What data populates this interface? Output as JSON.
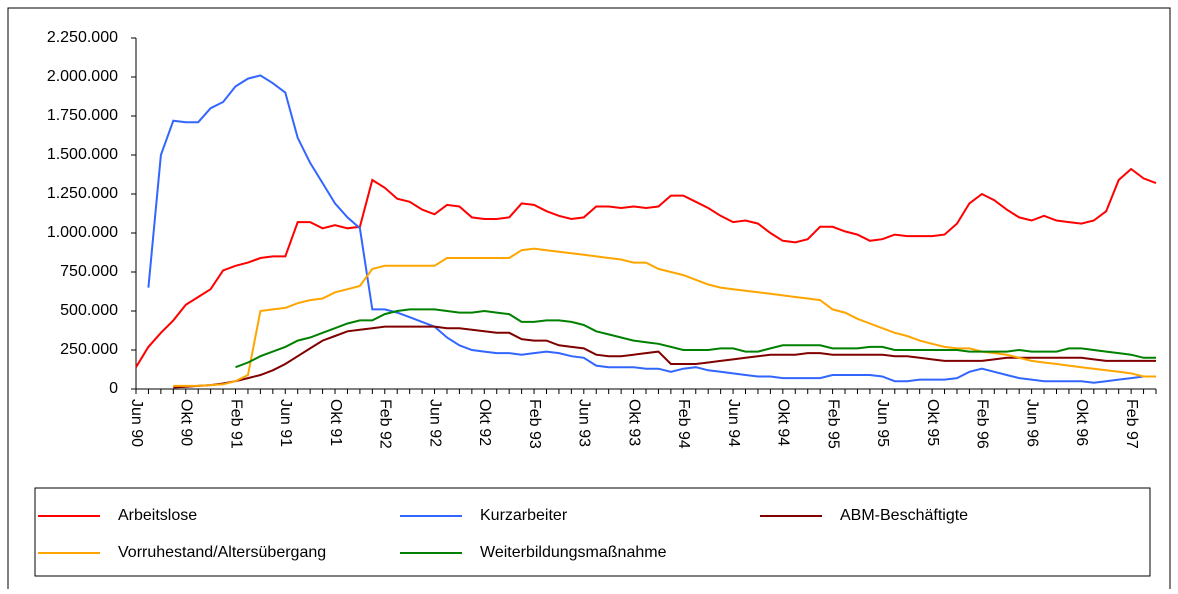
{
  "chart_data": {
    "type": "line",
    "categories": [
      "Jun 90",
      null,
      null,
      null,
      "Okt 90",
      null,
      null,
      null,
      "Feb 91",
      null,
      null,
      null,
      "Jun 91",
      null,
      null,
      null,
      "Okt 91",
      null,
      null,
      null,
      "Feb 92",
      null,
      null,
      null,
      "Jun 92",
      null,
      null,
      null,
      "Okt 92",
      null,
      null,
      null,
      "Feb 93",
      null,
      null,
      null,
      "Jun 93",
      null,
      null,
      null,
      "Okt 93",
      null,
      null,
      null,
      "Feb 94",
      null,
      null,
      null,
      "Jun 94",
      null,
      null,
      null,
      "Okt 94",
      null,
      null,
      null,
      "Feb 95",
      null,
      null,
      null,
      "Jun 95",
      null,
      null,
      null,
      "Okt 95",
      null,
      null,
      null,
      "Feb 96",
      null,
      null,
      null,
      "Jun 96",
      null,
      null,
      null,
      "Okt 96",
      null,
      null,
      null,
      "Feb 97",
      null,
      null
    ],
    "series": [
      {
        "name": "Arbeitslose",
        "color": "#ff0000",
        "values": [
          140000,
          270000,
          360000,
          440000,
          540000,
          590000,
          640000,
          760000,
          790000,
          810000,
          840000,
          850000,
          850000,
          1070000,
          1070000,
          1030000,
          1050000,
          1030000,
          1040000,
          1340000,
          1290000,
          1220000,
          1200000,
          1150000,
          1120000,
          1180000,
          1170000,
          1100000,
          1090000,
          1090000,
          1100000,
          1190000,
          1180000,
          1140000,
          1110000,
          1090000,
          1100000,
          1170000,
          1170000,
          1160000,
          1170000,
          1160000,
          1170000,
          1240000,
          1240000,
          1200000,
          1160000,
          1110000,
          1070000,
          1080000,
          1060000,
          1000000,
          950000,
          940000,
          960000,
          1040000,
          1040000,
          1010000,
          990000,
          950000,
          960000,
          990000,
          980000,
          980000,
          980000,
          990000,
          1060000,
          1190000,
          1250000,
          1210000,
          1150000,
          1100000,
          1080000,
          1110000,
          1080000,
          1070000,
          1060000,
          1080000,
          1140000,
          1340000,
          1410000,
          1350000,
          1320000
        ]
      },
      {
        "name": "Kurzarbeiter",
        "color": "#3366ff",
        "values": [
          null,
          650000,
          1500000,
          1720000,
          1710000,
          1710000,
          1800000,
          1840000,
          1940000,
          1990000,
          2010000,
          1960000,
          1900000,
          1610000,
          1450000,
          1320000,
          1190000,
          1100000,
          1030000,
          510000,
          510000,
          490000,
          460000,
          430000,
          400000,
          330000,
          280000,
          250000,
          240000,
          230000,
          230000,
          220000,
          230000,
          240000,
          230000,
          210000,
          200000,
          150000,
          140000,
          140000,
          140000,
          130000,
          130000,
          110000,
          130000,
          140000,
          120000,
          110000,
          100000,
          90000,
          80000,
          80000,
          70000,
          70000,
          70000,
          70000,
          90000,
          90000,
          90000,
          90000,
          80000,
          50000,
          50000,
          60000,
          60000,
          60000,
          70000,
          110000,
          130000,
          110000,
          90000,
          70000,
          60000,
          50000,
          50000,
          50000,
          50000,
          40000,
          50000,
          60000,
          70000,
          80000,
          80000
        ]
      },
      {
        "name": "ABM-Beschäftigte",
        "color": "#800000",
        "values": [
          null,
          null,
          null,
          10000,
          15000,
          20000,
          25000,
          35000,
          50000,
          70000,
          90000,
          120000,
          160000,
          210000,
          260000,
          310000,
          340000,
          370000,
          380000,
          390000,
          400000,
          400000,
          400000,
          400000,
          400000,
          390000,
          390000,
          380000,
          370000,
          360000,
          360000,
          320000,
          310000,
          310000,
          280000,
          270000,
          260000,
          220000,
          210000,
          210000,
          220000,
          230000,
          240000,
          160000,
          160000,
          160000,
          170000,
          180000,
          190000,
          200000,
          210000,
          220000,
          220000,
          220000,
          230000,
          230000,
          220000,
          220000,
          220000,
          220000,
          220000,
          210000,
          210000,
          200000,
          190000,
          180000,
          180000,
          180000,
          180000,
          190000,
          200000,
          200000,
          200000,
          200000,
          200000,
          200000,
          200000,
          190000,
          180000,
          180000,
          180000,
          180000,
          180000
        ]
      },
      {
        "name": "Vorruhestand/Altersübergang",
        "color": "#ffa500",
        "values": [
          null,
          null,
          null,
          20000,
          20000,
          20000,
          25000,
          30000,
          50000,
          90000,
          500000,
          510000,
          520000,
          550000,
          570000,
          580000,
          620000,
          640000,
          660000,
          770000,
          790000,
          790000,
          790000,
          790000,
          790000,
          840000,
          840000,
          840000,
          840000,
          840000,
          840000,
          890000,
          900000,
          890000,
          880000,
          870000,
          860000,
          850000,
          840000,
          830000,
          810000,
          810000,
          770000,
          750000,
          730000,
          700000,
          670000,
          650000,
          640000,
          630000,
          620000,
          610000,
          600000,
          590000,
          580000,
          570000,
          510000,
          490000,
          450000,
          420000,
          390000,
          360000,
          340000,
          310000,
          290000,
          270000,
          260000,
          260000,
          240000,
          230000,
          220000,
          200000,
          180000,
          170000,
          160000,
          150000,
          140000,
          130000,
          120000,
          110000,
          100000,
          80000,
          80000
        ]
      },
      {
        "name": "Weiterbildungsmaßnahme",
        "color": "#008000",
        "values": [
          null,
          null,
          null,
          null,
          null,
          null,
          null,
          null,
          140000,
          170000,
          210000,
          240000,
          270000,
          310000,
          330000,
          360000,
          390000,
          420000,
          440000,
          440000,
          480000,
          500000,
          510000,
          510000,
          510000,
          500000,
          490000,
          490000,
          500000,
          490000,
          480000,
          430000,
          430000,
          440000,
          440000,
          430000,
          410000,
          370000,
          350000,
          330000,
          310000,
          300000,
          290000,
          270000,
          250000,
          250000,
          250000,
          260000,
          260000,
          240000,
          240000,
          260000,
          280000,
          280000,
          280000,
          280000,
          260000,
          260000,
          260000,
          270000,
          270000,
          250000,
          250000,
          250000,
          250000,
          250000,
          250000,
          240000,
          240000,
          240000,
          240000,
          250000,
          240000,
          240000,
          240000,
          260000,
          260000,
          250000,
          240000,
          230000,
          220000,
          200000,
          200000
        ]
      }
    ],
    "ylim": [
      0,
      2250000
    ],
    "yticks": [
      0,
      {
        "value": 250000,
        "label": "250.000"
      },
      {
        "value": 500000,
        "label": "500.000"
      },
      {
        "value": 750000,
        "label": "750.000"
      },
      {
        "value": 1000000,
        "label": "1.000.000"
      },
      {
        "value": 1250000,
        "label": "1.250.000"
      },
      {
        "value": 1500000,
        "label": "1.500.000"
      },
      {
        "value": 1750000,
        "label": "1.750.000"
      },
      {
        "value": 2000000,
        "label": "2.000.000"
      },
      {
        "value": 2250000,
        "label": "2.250.000"
      }
    ],
    "grid": false
  }
}
